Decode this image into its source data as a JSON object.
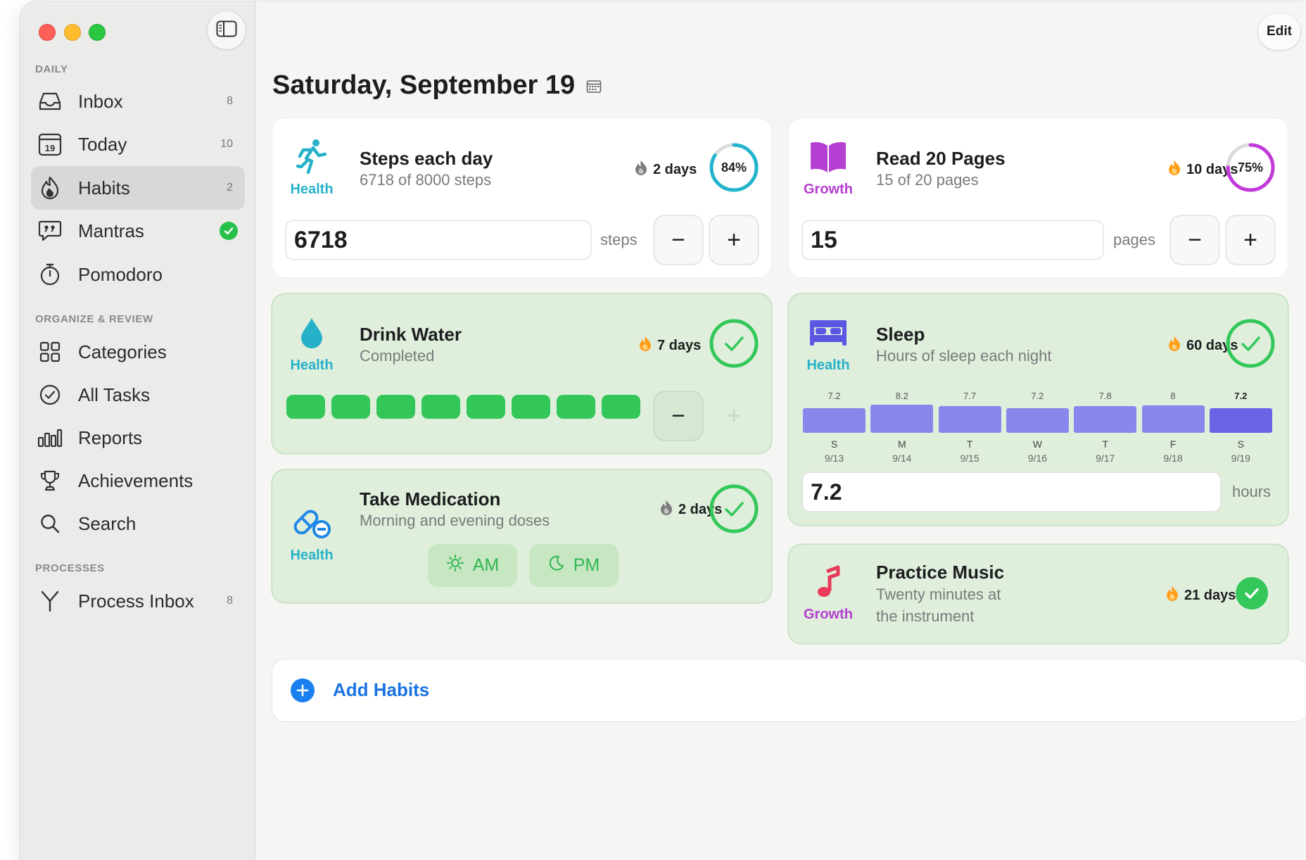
{
  "sidebar": {
    "sections": [
      {
        "label": "DAILY"
      },
      {
        "label": "ORGANIZE & REVIEW"
      },
      {
        "label": "PROCESSES"
      }
    ],
    "items": [
      {
        "label": "Inbox",
        "icon": "inbox-icon",
        "count": "8"
      },
      {
        "label": "Today",
        "icon": "calendar-19-icon",
        "count": "10",
        "icon_text": "19"
      },
      {
        "label": "Habits",
        "icon": "habits-flame-icon",
        "count": "2",
        "active": true
      },
      {
        "label": "Mantras",
        "icon": "speech-bubble-quote-icon",
        "status": "completed"
      },
      {
        "label": "Pomodoro",
        "icon": "timer-icon"
      },
      {
        "label": "Categories",
        "icon": "grid-icon"
      },
      {
        "label": "All Tasks",
        "icon": "checkmark-circle-icon"
      },
      {
        "label": "Reports",
        "icon": "bar-chart-icon"
      },
      {
        "label": "Achievements",
        "icon": "trophy-icon"
      },
      {
        "label": "Search",
        "icon": "search-icon"
      },
      {
        "label": "Process Inbox",
        "icon": "process-fork-icon",
        "count": "8"
      }
    ]
  },
  "header": {
    "date_title": "Saturday, September 19",
    "edit_label": "Edit"
  },
  "habits": {
    "steps": {
      "title": "Steps each day",
      "subtitle": "6718 of 8000 steps",
      "category": "Health",
      "streak": "2 days",
      "progress_label": "84%",
      "progress": 0.84,
      "value": "6718",
      "unit": "steps",
      "minus": "−",
      "plus": "+"
    },
    "read": {
      "title": "Read 20 Pages",
      "subtitle": "15 of 20 pages",
      "category": "Growth",
      "streak": "10 days",
      "progress_label": "75%",
      "progress": 0.75,
      "value": "15",
      "unit": "pages",
      "minus": "−",
      "plus": "+"
    },
    "water": {
      "title": "Drink Water",
      "subtitle": "Completed",
      "category": "Health",
      "streak": "7 days",
      "cups_filled": 8,
      "minus": "−",
      "plus": "+"
    },
    "sleep": {
      "title": "Sleep",
      "subtitle": "Hours of sleep each night",
      "category": "Health",
      "streak": "60 days",
      "value": "7.2",
      "unit": "hours"
    },
    "medication": {
      "title": "Take Medication",
      "subtitle": "Morning and evening doses",
      "category": "Health",
      "streak": "2 days",
      "am_label": "AM",
      "pm_label": "PM"
    },
    "music": {
      "title": "Practice Music",
      "subtitle_line1": "Twenty minutes at",
      "subtitle_line2": "the instrument",
      "category": "Growth",
      "streak": "21 days"
    }
  },
  "chart_data": {
    "type": "bar",
    "categories": [
      "S",
      "M",
      "T",
      "W",
      "T",
      "F",
      "S"
    ],
    "dates": [
      "9/13",
      "9/14",
      "9/15",
      "9/16",
      "9/17",
      "9/18",
      "9/19"
    ],
    "values": [
      7.2,
      8.2,
      7.7,
      7.2,
      7.8,
      8,
      7.2
    ],
    "value_labels": [
      "7.2",
      "8.2",
      "7.7",
      "7.2",
      "7.8",
      "8",
      "7.2"
    ],
    "highlight_index": 6,
    "colors": {
      "bar": "#8a86ec",
      "highlight": "#6a63e6"
    }
  },
  "add": {
    "label": "Add Habits"
  },
  "colors": {
    "health": "#27b1c9",
    "growth": "#b53fd2",
    "done_bg": "#dfefdc",
    "check": "#34c759",
    "accent_blue": "#1a80f0",
    "flame": "#ff9f1c"
  }
}
